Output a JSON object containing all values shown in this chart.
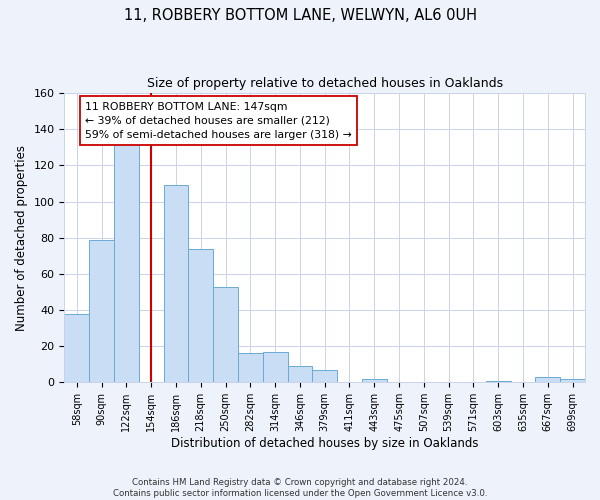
{
  "title": "11, ROBBERY BOTTOM LANE, WELWYN, AL6 0UH",
  "subtitle": "Size of property relative to detached houses in Oaklands",
  "xlabel": "Distribution of detached houses by size in Oaklands",
  "ylabel": "Number of detached properties",
  "bar_labels": [
    "58sqm",
    "90sqm",
    "122sqm",
    "154sqm",
    "186sqm",
    "218sqm",
    "250sqm",
    "282sqm",
    "314sqm",
    "346sqm",
    "379sqm",
    "411sqm",
    "443sqm",
    "475sqm",
    "507sqm",
    "539sqm",
    "571sqm",
    "603sqm",
    "635sqm",
    "667sqm",
    "699sqm"
  ],
  "bar_heights": [
    38,
    79,
    133,
    0,
    109,
    74,
    53,
    16,
    17,
    9,
    7,
    0,
    2,
    0,
    0,
    0,
    0,
    1,
    0,
    3,
    2
  ],
  "bar_color": "#c9ddf5",
  "bar_edge_color": "#6aaad4",
  "vline_x": 3.0,
  "vline_color": "#cc0000",
  "ylim": [
    0,
    160
  ],
  "yticks": [
    0,
    20,
    40,
    60,
    80,
    100,
    120,
    140,
    160
  ],
  "annotation_text": "11 ROBBERY BOTTOM LANE: 147sqm\n← 39% of detached houses are smaller (212)\n59% of semi-detached houses are larger (318) →",
  "footer_line1": "Contains HM Land Registry data © Crown copyright and database right 2024.",
  "footer_line2": "Contains public sector information licensed under the Open Government Licence v3.0.",
  "bg_color": "#eef2fb",
  "plot_bg_color": "#ffffff",
  "grid_color": "#c8d4e8"
}
